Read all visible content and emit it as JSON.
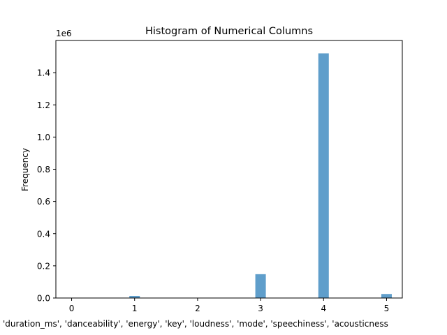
{
  "chart_data": {
    "type": "bar",
    "title": "Histogram of Numerical Columns",
    "xlabel": "'duration_ms', 'danceability', 'energy', 'key', 'loudness', 'mode', 'speechiness', 'acousticness",
    "ylabel": "Frequency",
    "y_offset_label": "1e6",
    "xlim": [
      -0.25,
      5.25
    ],
    "ylim": [
      0,
      1.6
    ],
    "x_ticks": [
      "0",
      "1",
      "2",
      "3",
      "4",
      "5"
    ],
    "y_ticks": [
      "0.0",
      "0.2",
      "0.4",
      "0.6",
      "0.8",
      "1.0",
      "1.2",
      "1.4"
    ],
    "bar_width": 0.1667,
    "bars": [
      {
        "x": 1.0,
        "value": 0.013
      },
      {
        "x": 3.0,
        "value": 0.148
      },
      {
        "x": 4.0,
        "value": 1.52
      },
      {
        "x": 5.0,
        "value": 0.025
      }
    ],
    "bar_color": "#5f9ecb",
    "grid": false,
    "legend": "none"
  }
}
